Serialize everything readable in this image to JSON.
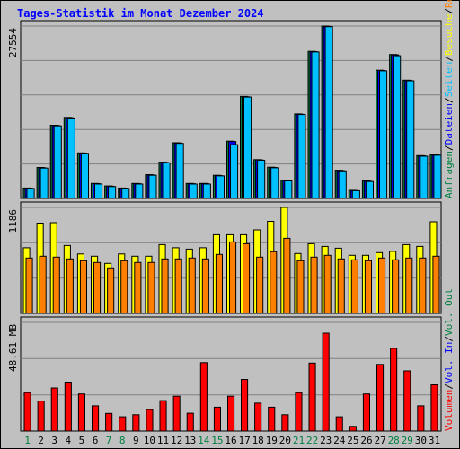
{
  "title": "Tages-Statistik im Monat Dezember 2024",
  "colors": {
    "background": "#c0c0c0",
    "title": "#0000ff",
    "anfragen": "#008040",
    "dateien": "#0000ff",
    "seiten": "#00c0ff",
    "besuche": "#ffff00",
    "rechner": "#ff8000",
    "volumen": "#ff0000",
    "volIn": "#0000ff",
    "volOut": "#008040",
    "axisSlash": "#000000",
    "weekday": "#000000",
    "weekend": "#008040"
  },
  "right_legend": {
    "top": [
      "Anfragen",
      "/",
      "Dateien",
      "/",
      "Seiten",
      "/",
      "Besuche",
      "/",
      "Rechner"
    ],
    "bottom": [
      "Volumen",
      "/",
      "Vol. In",
      "/",
      "Vol. Out"
    ]
  },
  "chart_data": {
    "type": "bar",
    "categories": [
      "1",
      "2",
      "3",
      "4",
      "5",
      "6",
      "7",
      "8",
      "9",
      "10",
      "11",
      "12",
      "13",
      "14",
      "15",
      "16",
      "17",
      "18",
      "19",
      "20",
      "21",
      "22",
      "23",
      "24",
      "25",
      "26",
      "27",
      "28",
      "29",
      "30",
      "31"
    ],
    "weekend_days": [
      "1",
      "7",
      "8",
      "14",
      "15",
      "21",
      "22",
      "28",
      "29"
    ],
    "panels": [
      {
        "ymax_label": "27554",
        "ylim": [
          0,
          27554
        ],
        "series": [
          {
            "name": "Anfragen",
            "values": [
              1670,
              4950,
              11700,
              12950,
              7270,
              2400,
              2000,
              1670,
              2400,
              3800,
              5800,
              8900,
              2400,
              2400,
              3700,
              9150,
              16300,
              6200,
              5000,
              2900,
              13500,
              23500,
              27550,
              4500,
              1290,
              2800,
              20500,
              23000,
              18900,
              6850,
              7000
            ]
          },
          {
            "name": "Dateien",
            "values": [
              1640,
              4900,
              11650,
              12900,
              7230,
              2350,
              1950,
              1640,
              2350,
              3750,
              5750,
              8850,
              2350,
              2350,
              3650,
              9100,
              16250,
              6150,
              4950,
              2850,
              13450,
              23450,
              27500,
              4450,
              1260,
              2750,
              20450,
              22950,
              18850,
              6800,
              6950
            ]
          },
          {
            "name": "Seiten",
            "values": [
              1600,
              4850,
              11600,
              12850,
              7200,
              2300,
              1900,
              1600,
              2300,
              3700,
              5700,
              8800,
              2300,
              2300,
              3600,
              8600,
              16200,
              6100,
              4900,
              2800,
              13400,
              23400,
              27450,
              4400,
              1230,
              2700,
              20400,
              22800,
              18800,
              6750,
              6900
            ]
          }
        ]
      },
      {
        "ymax_label": "1186",
        "ylim": [
          0,
          1186
        ],
        "series": [
          {
            "name": "Besuche",
            "values": [
              735,
              1010,
              1015,
              760,
              665,
              640,
              560,
              665,
              640,
              640,
              770,
              735,
              720,
              735,
              880,
              880,
              880,
              935,
              1030,
              1186,
              670,
              780,
              750,
              730,
              650,
              650,
              680,
              695,
              770,
              750,
              1025
            ]
          },
          {
            "name": "Rechner",
            "values": [
              620,
              640,
              630,
              610,
              590,
              570,
              510,
              590,
              570,
              570,
              610,
              610,
              620,
              610,
              660,
              800,
              780,
              630,
              690,
              840,
              590,
              630,
              650,
              610,
              600,
              590,
              620,
              600,
              620,
              620,
              640
            ]
          }
        ]
      },
      {
        "ymax_label": "48.61 MB",
        "ylim": [
          0,
          48.61
        ],
        "series": [
          {
            "name": "Volumen",
            "values": [
              17.2,
              13.4,
              19.3,
              21.9,
              16.6,
              11.3,
              7.9,
              6.4,
              7.3,
              9.6,
              13.6,
              15.6,
              8.0,
              30.6,
              10.7,
              15.6,
              23.1,
              12.5,
              10.7,
              7.3,
              17.2,
              30.4,
              43.8,
              6.4,
              2.1,
              16.6,
              29.8,
              37.0,
              26.9,
              11.3,
              20.7
            ]
          }
        ]
      }
    ]
  }
}
